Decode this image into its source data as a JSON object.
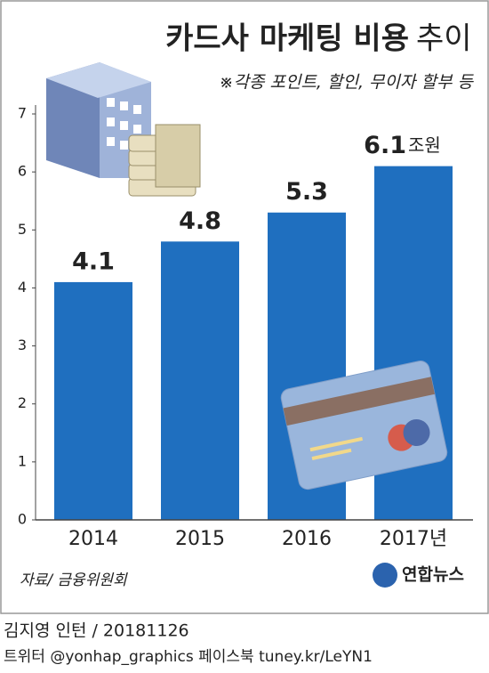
{
  "chart_data": {
    "type": "bar",
    "title": "카드사 마케팅 비용",
    "title_suffix": "추이",
    "subtitle": "※각종 포인트, 할인, 무이자 할부 등",
    "categories": [
      "2014",
      "2015",
      "2016",
      "2017년"
    ],
    "values": [
      4.1,
      4.8,
      5.3,
      6.1
    ],
    "unit_label": "조원",
    "color": "#1f6fbf",
    "ylim": [
      0,
      7
    ],
    "yticks": [
      0,
      1,
      2,
      3,
      4,
      5,
      6,
      7
    ],
    "grid": false,
    "source": "자료/ 금융위원회",
    "logo": "연합뉴스"
  },
  "footer": {
    "author": "김지영 인턴 / 20181126",
    "social": "트위터 @yonhap_graphics  페이스북 tuney.kr/LeYN1"
  }
}
